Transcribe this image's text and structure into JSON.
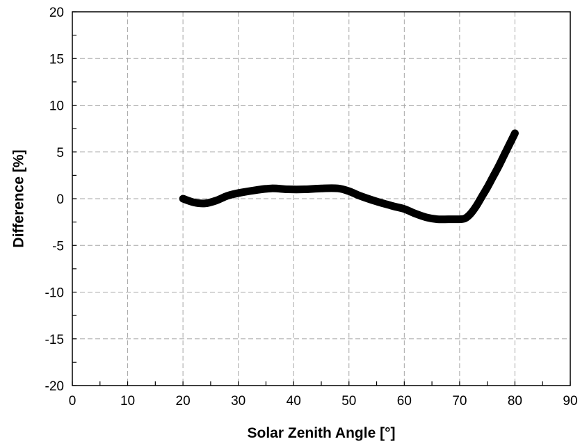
{
  "chart_data": {
    "type": "line",
    "title": "",
    "xlabel": "Solar Zenith Angle [°]",
    "ylabel": "Difference [%]",
    "xlim": [
      0,
      90
    ],
    "ylim": [
      -20,
      20
    ],
    "x_ticks": [
      0,
      10,
      20,
      30,
      40,
      50,
      60,
      70,
      80,
      90
    ],
    "y_ticks": [
      -20,
      -15,
      -10,
      -5,
      0,
      5,
      10,
      15,
      20
    ],
    "grid": true,
    "legend": "none",
    "series": [
      {
        "color": "#000000",
        "x": [
          20,
          22,
          24,
          26,
          28,
          30,
          33,
          36,
          39,
          42,
          45,
          48,
          50,
          52,
          55,
          58,
          60,
          62,
          64,
          66,
          68,
          70,
          71,
          72,
          73,
          74,
          75,
          76,
          77,
          78,
          79,
          80
        ],
        "y": [
          0.0,
          -0.4,
          -0.5,
          -0.2,
          0.3,
          0.6,
          0.9,
          1.1,
          1.0,
          1.0,
          1.1,
          1.1,
          0.8,
          0.3,
          -0.3,
          -0.8,
          -1.1,
          -1.6,
          -2.0,
          -2.2,
          -2.2,
          -2.2,
          -2.1,
          -1.6,
          -0.8,
          0.2,
          1.2,
          2.3,
          3.4,
          4.6,
          5.8,
          7.0
        ]
      }
    ]
  }
}
